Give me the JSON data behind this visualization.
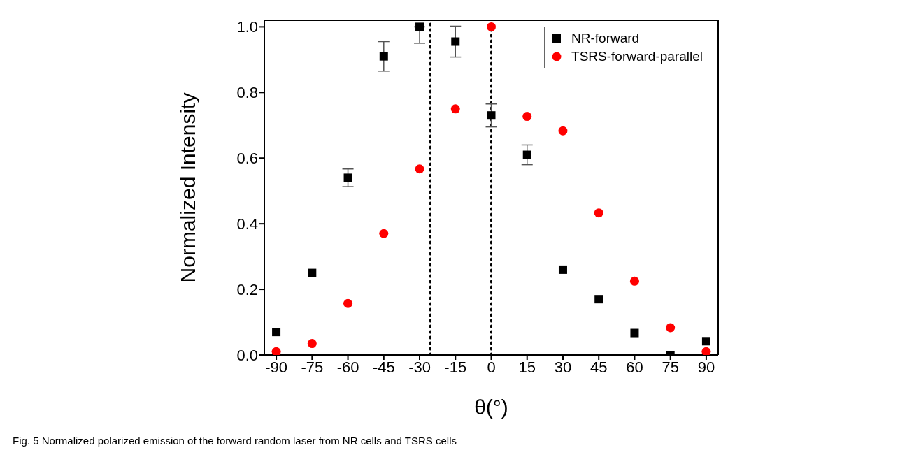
{
  "chart_data": {
    "type": "scatter",
    "xlabel": "θ(°)",
    "ylabel": "Normalized Intensity",
    "x": [
      -90,
      -75,
      -60,
      -45,
      -30,
      -15,
      0,
      15,
      30,
      45,
      60,
      75,
      90
    ],
    "series": [
      {
        "name": "NR-forward",
        "color": "#000000",
        "marker": "square",
        "values": [
          0.07,
          0.25,
          0.54,
          0.91,
          1.0,
          0.955,
          0.73,
          0.61,
          0.26,
          0.17,
          0.067,
          0.0,
          0.042
        ],
        "errors": [
          null,
          null,
          0.027,
          0.045,
          [
            0.95,
            1.0
          ],
          0.047,
          0.035,
          0.03,
          null,
          null,
          null,
          null,
          null
        ]
      },
      {
        "name": "TSRS-forward-parallel",
        "color": "#ff0000",
        "marker": "circle",
        "values": [
          0.01,
          0.035,
          0.157,
          0.37,
          0.567,
          0.75,
          1.0,
          0.727,
          0.683,
          0.433,
          0.225,
          0.083,
          0.01
        ]
      }
    ],
    "xlim": [
      -95,
      95
    ],
    "xticks": [
      -90,
      -75,
      -60,
      -45,
      -30,
      -15,
      0,
      15,
      30,
      45,
      60,
      75,
      90
    ],
    "ylim": [
      0,
      1.02
    ],
    "yticks": [
      {
        "value": 0,
        "label": "0.0"
      },
      {
        "value": 0.2,
        "label": "0.2"
      },
      {
        "value": 0.4,
        "label": "0.4"
      },
      {
        "value": 0.6,
        "label": "0.6"
      },
      {
        "value": 0.8,
        "label": "0.8"
      },
      {
        "value": 1.0,
        "label": "1.0"
      }
    ],
    "ref_lines": [
      {
        "axis": "x",
        "value": -25.5,
        "color": "#000000",
        "line_style": "dotted"
      },
      {
        "axis": "x",
        "value": 0,
        "color": "#000000",
        "line_style": "dotted"
      }
    ],
    "grid": false,
    "legend": "top right",
    "annotations": [
      "Fig. 5 Normalized polarized emission of the forward random laser from NR cells and TSRS cells"
    ]
  }
}
